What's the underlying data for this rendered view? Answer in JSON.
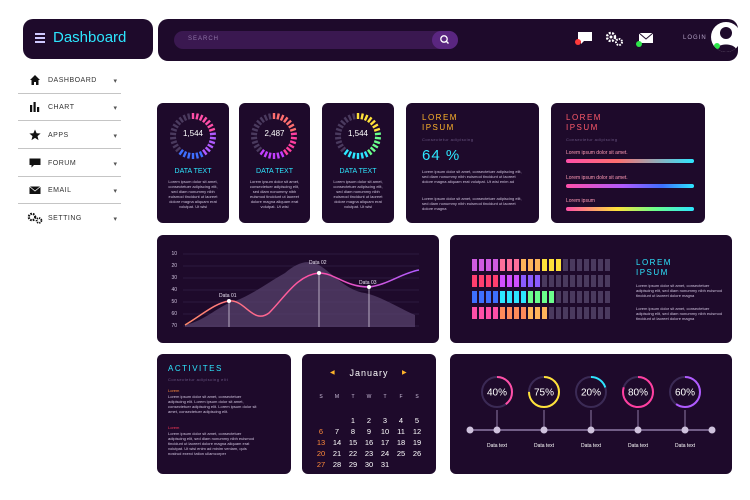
{
  "header": {
    "title": "Dashboard",
    "search_placeholder": "SEARCH",
    "login_label": "LOGIN"
  },
  "sidebar": {
    "items": [
      {
        "label": "DASHBOARD",
        "icon": "home-icon"
      },
      {
        "label": "CHART",
        "icon": "bar-chart-icon"
      },
      {
        "label": "APPS",
        "icon": "star-icon"
      },
      {
        "label": "FORUM",
        "icon": "chat-icon"
      },
      {
        "label": "EMAIL",
        "icon": "mail-icon"
      },
      {
        "label": "SETTING",
        "icon": "gears-icon"
      }
    ]
  },
  "gauges": [
    {
      "value": "1,544",
      "label": "DATA TEXT",
      "body": "Lorem ipsum dolor sit amet, consectetuer adipiscing elit, sed diam nonummy nibh euismod tincidunt ut laoreet dolore magna aliquam erat volutpat. Ut wisi",
      "colors": [
        "#ff4fa8",
        "#b05bff",
        "#3e6fff"
      ]
    },
    {
      "value": "2,487",
      "label": "DATA TEXT",
      "body": "Lorem ipsum dolor sit amet, consectetuer adipiscing elit, sed diam nonummy nibh euismod tincidunt ut laoreet dolore magna aliquam erat volutpat. Ut wisi",
      "colors": [
        "#ff6f6f",
        "#ff3fa0",
        "#c23fff"
      ]
    },
    {
      "value": "1,544",
      "label": "DATA TEXT",
      "body": "Lorem ipsum dolor sit amet, consectetuer adipiscing elit, sed diam nonummy nibh euismod tincidunt ut laoreet dolore magna aliquam erat volutpat. Ut wisi",
      "colors": [
        "#ffe23a",
        "#6bff8c",
        "#2de6ff"
      ]
    }
  ],
  "percent_card": {
    "title_line1": "LOREM",
    "title_line2": "IPSUM",
    "subtitle": "Consectetur adipiscing",
    "value": "64 %",
    "body1": "Lorem ipsum dolor sit amet, consectetuer adipiscing elit, sed diam nonummy nibh euismod tincidunt ut laoreet dolore magna aliquam erat volutpat. Ut wisi enim ad",
    "body2": "Lorem ipsum dolor sit amet, consectetuer adipiscing elit, sed diam nonummy nibh euismod tincidunt ut laoreet dolore magna"
  },
  "bars_card": {
    "title_line1": "LOREM",
    "title_line2": "IPSUM",
    "subtitle": "Consectetur adipiscing",
    "bars": [
      {
        "label": "Lorem ipsum dolor sit amet."
      },
      {
        "label": "Lorem ipsum dolor sit amet."
      },
      {
        "label": "Lorem ipsum"
      }
    ]
  },
  "line_chart": {
    "yticks": [
      "10",
      "20",
      "30",
      "40",
      "50",
      "60",
      "70"
    ],
    "annotations": [
      "Data 01",
      "Data 02",
      "Data 03"
    ]
  },
  "equalizer_card": {
    "title_line1": "LOREM",
    "title_line2": "IPSUM",
    "body1": "Lorem ipsum dolor sit amet, consectetuer adipiscing elit, sed diam nonummy nibh euismod tincidunt ut laoreet dolore magna",
    "body2": "Lorem ipsum dolor sit amet, consectetuer adipiscing elit, sed diam nonummy nibh euismod tincidunt ut laoreet dolore magna",
    "rows": [
      {
        "lit": 13,
        "colors": [
          "#d05be0",
          "#ff6f9a",
          "#ffb45a",
          "#ffe23a"
        ]
      },
      {
        "lit": 10,
        "colors": [
          "#ff3f6f",
          "#d04fff",
          "#8a5bff"
        ]
      },
      {
        "lit": 12,
        "colors": [
          "#3e6fff",
          "#2de6ff",
          "#6bff8c"
        ]
      },
      {
        "lit": 11,
        "colors": [
          "#ff4fa8",
          "#ff8a5a",
          "#ffb45a"
        ]
      }
    ]
  },
  "activities": {
    "title": "ACTIVITES",
    "subtitle": "Consectetur adipiscing elit",
    "items": [
      {
        "head": "Lorem",
        "body": "Lorem ipsum dolor sit amet, consectetuer adipiscing elit. Lorem ipsum dolor sit amet, consectetuer adipiscing elit. Lorem ipsum dolor sit amet, consectetuer adipiscing elit."
      },
      {
        "head": "Lorem",
        "body": "Lorem ipsum dolor sit amet, consectetuer adipiscing elit, sed diam nonummy nibh euismod tincidunt ut laoreet dolore magna aliquam erat volutpat. Ut wisi enim ad minim veniam, quis nostrud exerci tation ullamcorper"
      }
    ]
  },
  "calendar": {
    "month": "January",
    "prev": "◀",
    "next": "▶",
    "weekdays": [
      "S",
      "M",
      "T",
      "W",
      "T",
      "F",
      "S"
    ],
    "rows": [
      [
        "",
        "",
        "",
        "",
        "",
        "",
        ""
      ],
      [
        "",
        "",
        "1",
        "2",
        "3",
        "4",
        "5"
      ],
      [
        "6",
        "7",
        "8",
        "9",
        "10",
        "11",
        "12"
      ],
      [
        "13",
        "14",
        "15",
        "16",
        "17",
        "18",
        "19"
      ],
      [
        "20",
        "21",
        "22",
        "23",
        "24",
        "25",
        "26"
      ],
      [
        "27",
        "28",
        "29",
        "30",
        "31",
        "",
        ""
      ]
    ],
    "highlight_color": "#ff8a3a"
  },
  "rings": [
    {
      "value": "40%",
      "pct": 40,
      "label": "Data text",
      "color": "#ff4fa8"
    },
    {
      "value": "75%",
      "pct": 75,
      "label": "Data text",
      "color": "#ffe23a"
    },
    {
      "value": "20%",
      "pct": 20,
      "label": "Data text",
      "color": "#2de6ff"
    },
    {
      "value": "80%",
      "pct": 80,
      "label": "Data text",
      "color": "#ff3fa0"
    },
    {
      "value": "60%",
      "pct": 60,
      "label": "Data text",
      "color": "#b05bff"
    }
  ]
}
